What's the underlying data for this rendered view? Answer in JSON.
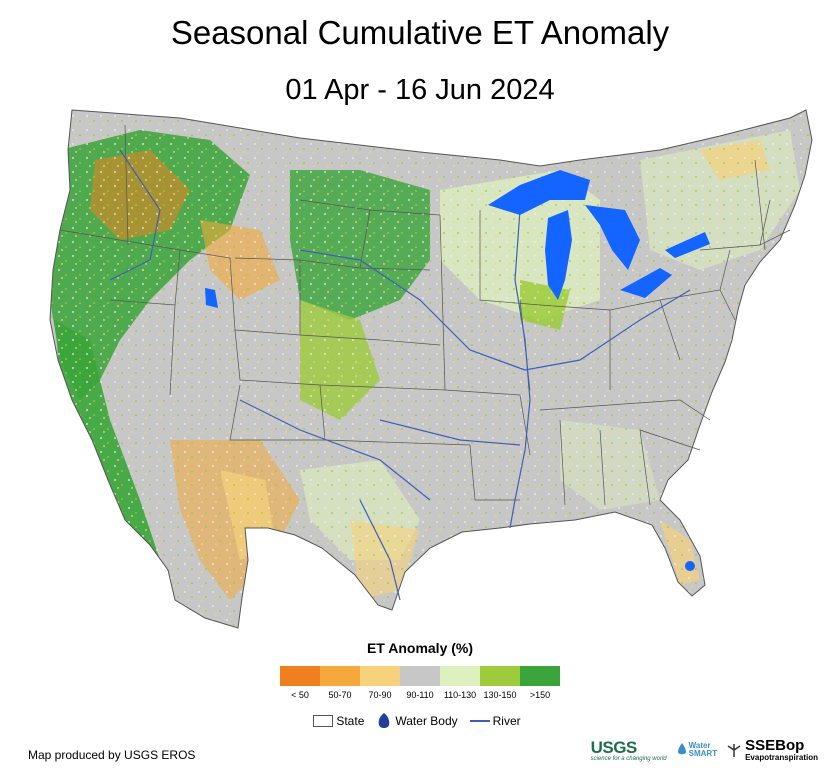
{
  "title": "Seasonal Cumulative ET Anomaly",
  "subtitle": "01 Apr - 16 Jun 2024",
  "legend": {
    "title": "ET Anomaly (%)",
    "classes": [
      {
        "label": "< 50",
        "color": "#f07f1f"
      },
      {
        "label": "50-70",
        "color": "#f4a93a"
      },
      {
        "label": "70-90",
        "color": "#f7d27c"
      },
      {
        "label": "90-110",
        "color": "#c7c7c7"
      },
      {
        "label": "110-130",
        "color": "#ddf0c0"
      },
      {
        "label": "130-150",
        "color": "#9dcb3c"
      },
      {
        "label": ">150",
        "color": "#3aa53a"
      }
    ]
  },
  "key": {
    "state": "State",
    "water": "Water Body",
    "river": "River"
  },
  "colors": {
    "water": "#1464ff",
    "river": "#3d5fb8",
    "border": "#555555"
  },
  "credit": "Map produced by USGS EROS",
  "logos": {
    "usgs": "USGS",
    "usgs_tagline": "science for a changing world",
    "watersmart_line1": "Water",
    "watersmart_line2": "SMART",
    "ssebop": "SSEBop",
    "ssebop_sub": "Evapotranspiration"
  }
}
